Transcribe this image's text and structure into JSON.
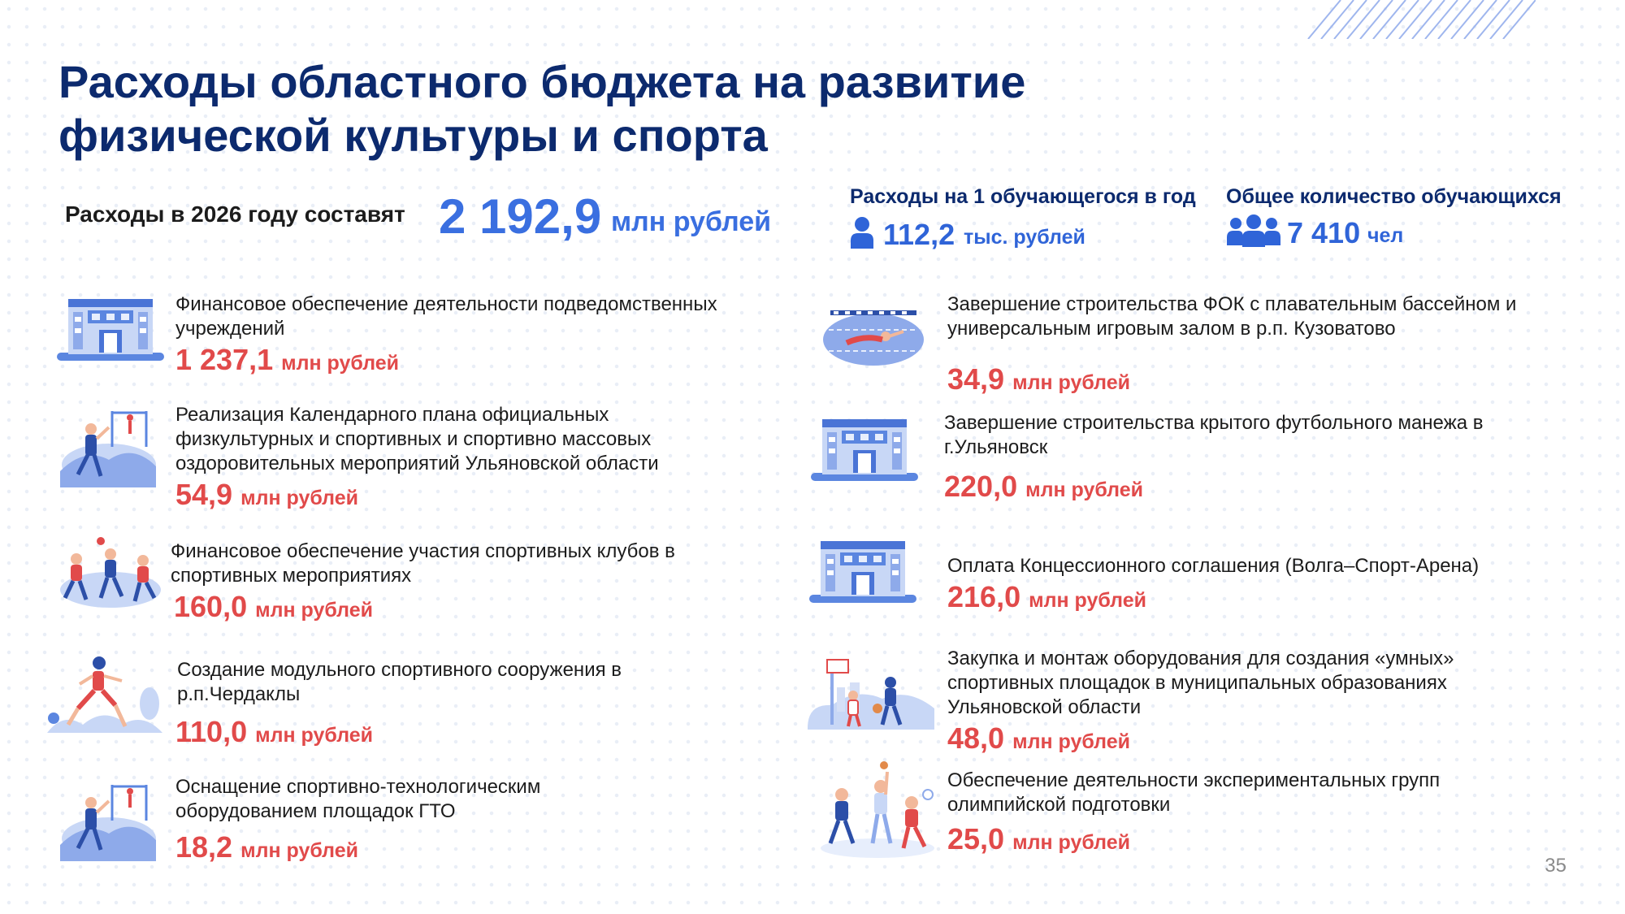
{
  "title": "Расходы областного бюджета на развитие физической культуры и спорта",
  "total": {
    "label": "Расходы в 2026 году составят",
    "value": "2 192,9",
    "unit": "млн рублей"
  },
  "per_student": {
    "label": "Расходы на 1 обучающегося в год",
    "value": "112,2",
    "unit": "тыс. рублей",
    "icon": "person-icon"
  },
  "students": {
    "label": "Общее количество обучающихся",
    "value": "7 410",
    "unit": "чел",
    "icon": "people-group-icon"
  },
  "items_left": [
    {
      "text": "Финансовое обеспечение деятельности подведомственных учреждений",
      "amount": "1 237,1",
      "unit": "млн рублей",
      "icon": "building-icon"
    },
    {
      "text": "Реализация Календарного плана официальных физкультурных и спортивных и спортивно массовых оздоровительных мероприятий Ульяновской области",
      "amount": "54,9",
      "unit": "млн рублей",
      "icon": "athletes-icon"
    },
    {
      "text": "Финансовое обеспечение участия спортивных клубов в спортивных мероприятиях",
      "amount": "160,0",
      "unit": "млн рублей",
      "icon": "sports-team-icon"
    },
    {
      "text": "Создание модульного спортивного сооружения в р.п.Чердаклы",
      "amount": "110,0",
      "unit": "млн рублей",
      "icon": "runner-icon"
    },
    {
      "text": "Оснащение спортивно-технологическим оборудованием площадок ГТО",
      "amount": "18,2",
      "unit": "млн рублей",
      "icon": "athletes-icon"
    }
  ],
  "items_right": [
    {
      "text": "Завершение строительства ФОК с плавательным бассейном и универсальным игровым залом в р.п. Кузоватово",
      "amount": "34,9",
      "unit": "млн рублей",
      "icon": "swimming-pool-icon"
    },
    {
      "text": "Завершение строительства крытого футбольного манежа в г.Ульяновск",
      "amount": "220,0",
      "unit": "млн рублей",
      "icon": "building-icon"
    },
    {
      "text": "Оплата Концессионного соглашения (Волга–Спорт-Арена)",
      "amount": "216,0",
      "unit": "млн рублей",
      "icon": "building-icon"
    },
    {
      "text": " Закупка и монтаж оборудования  для создания «умных» спортивных площадок в муниципальных образованиях Ульяновской области",
      "amount": "48,0",
      "unit": "млн рублей",
      "icon": "basketball-court-icon"
    },
    {
      "text": "Обеспечение деятельности экспериментальных групп олимпийской подготовки",
      "amount": "25,0",
      "unit": "млн рублей",
      "icon": "kids-sports-icon"
    }
  ],
  "page_number": "35",
  "colors": {
    "title": "#0c2a6e",
    "accent_blue": "#3a6fe0",
    "accent_red": "#e14a4a",
    "icon_blue": "#5b86e0",
    "icon_light": "#b9cbf2"
  }
}
